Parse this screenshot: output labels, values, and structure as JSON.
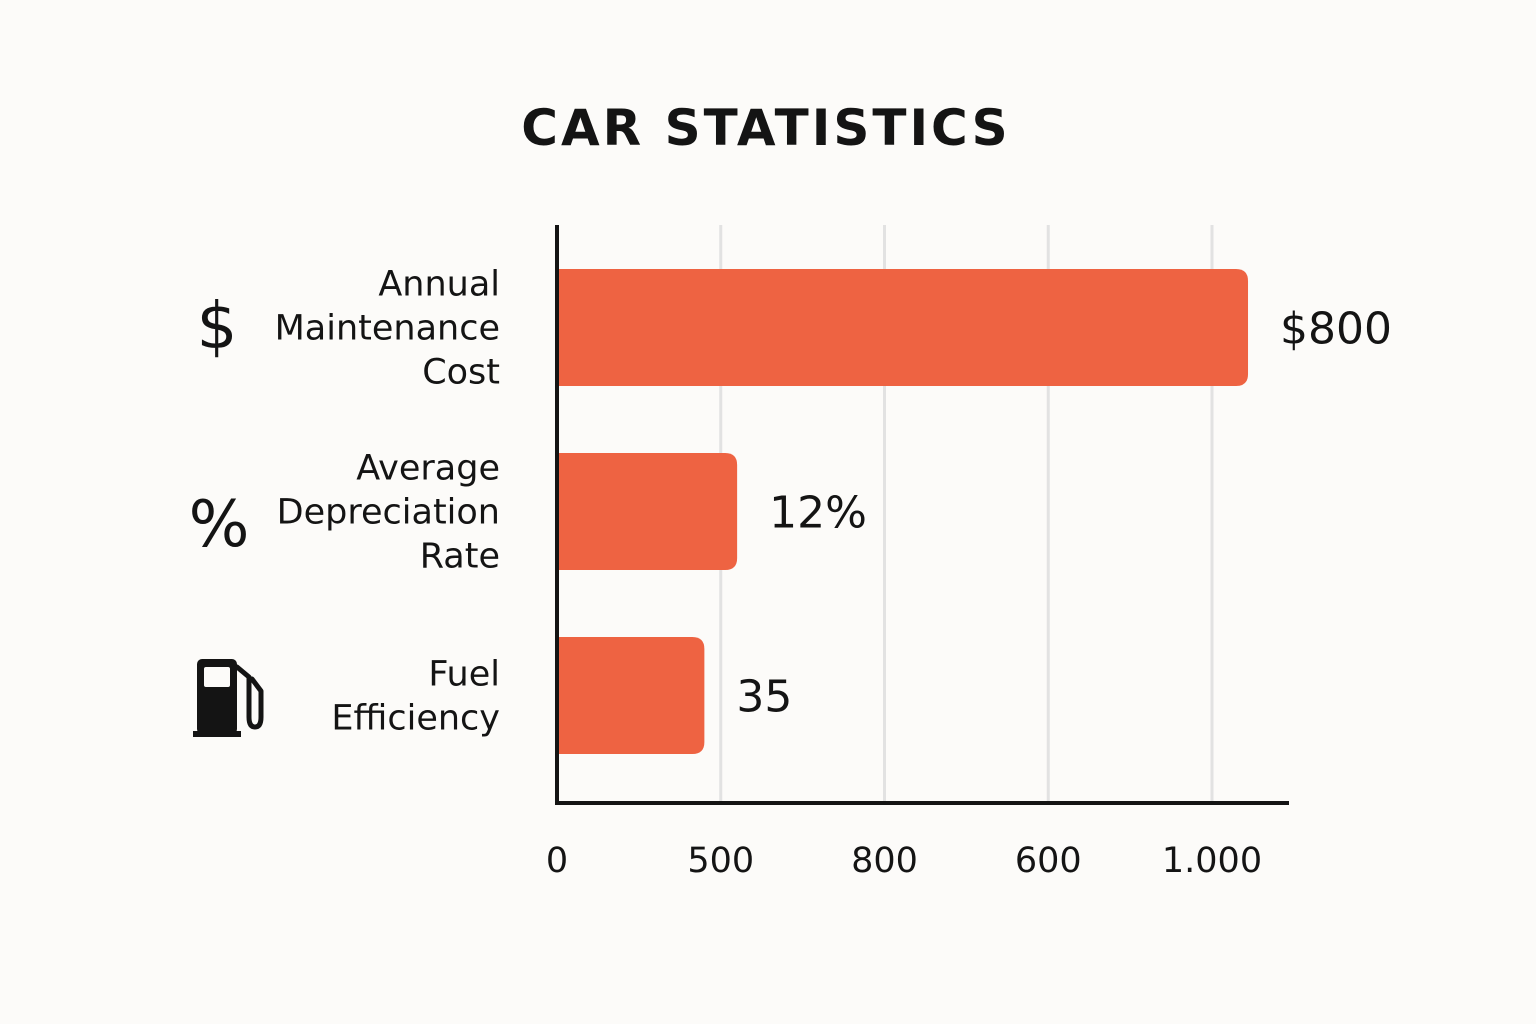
{
  "chart_data": {
    "type": "bar",
    "orientation": "horizontal",
    "title": "CAR STATISTICS",
    "categories": [
      [
        "Annual",
        "Maintenance",
        "Cost"
      ],
      [
        "Average",
        "Depreciation",
        "Rate"
      ],
      [
        "Fuel",
        "Efficiency"
      ]
    ],
    "icons": [
      "dollar-icon",
      "percent-icon",
      "fuel-pump-icon"
    ],
    "values": [
      1055,
      275,
      225
    ],
    "value_labels": [
      "$800",
      "12%",
      "35"
    ],
    "x_ticks": [
      "0",
      "500",
      "800",
      "600",
      "1.000"
    ],
    "grid": true,
    "colors": {
      "bar": "#ee6342",
      "axis": "#141414",
      "grid": "#e2e2e2",
      "background": "#fcfbf9"
    }
  }
}
